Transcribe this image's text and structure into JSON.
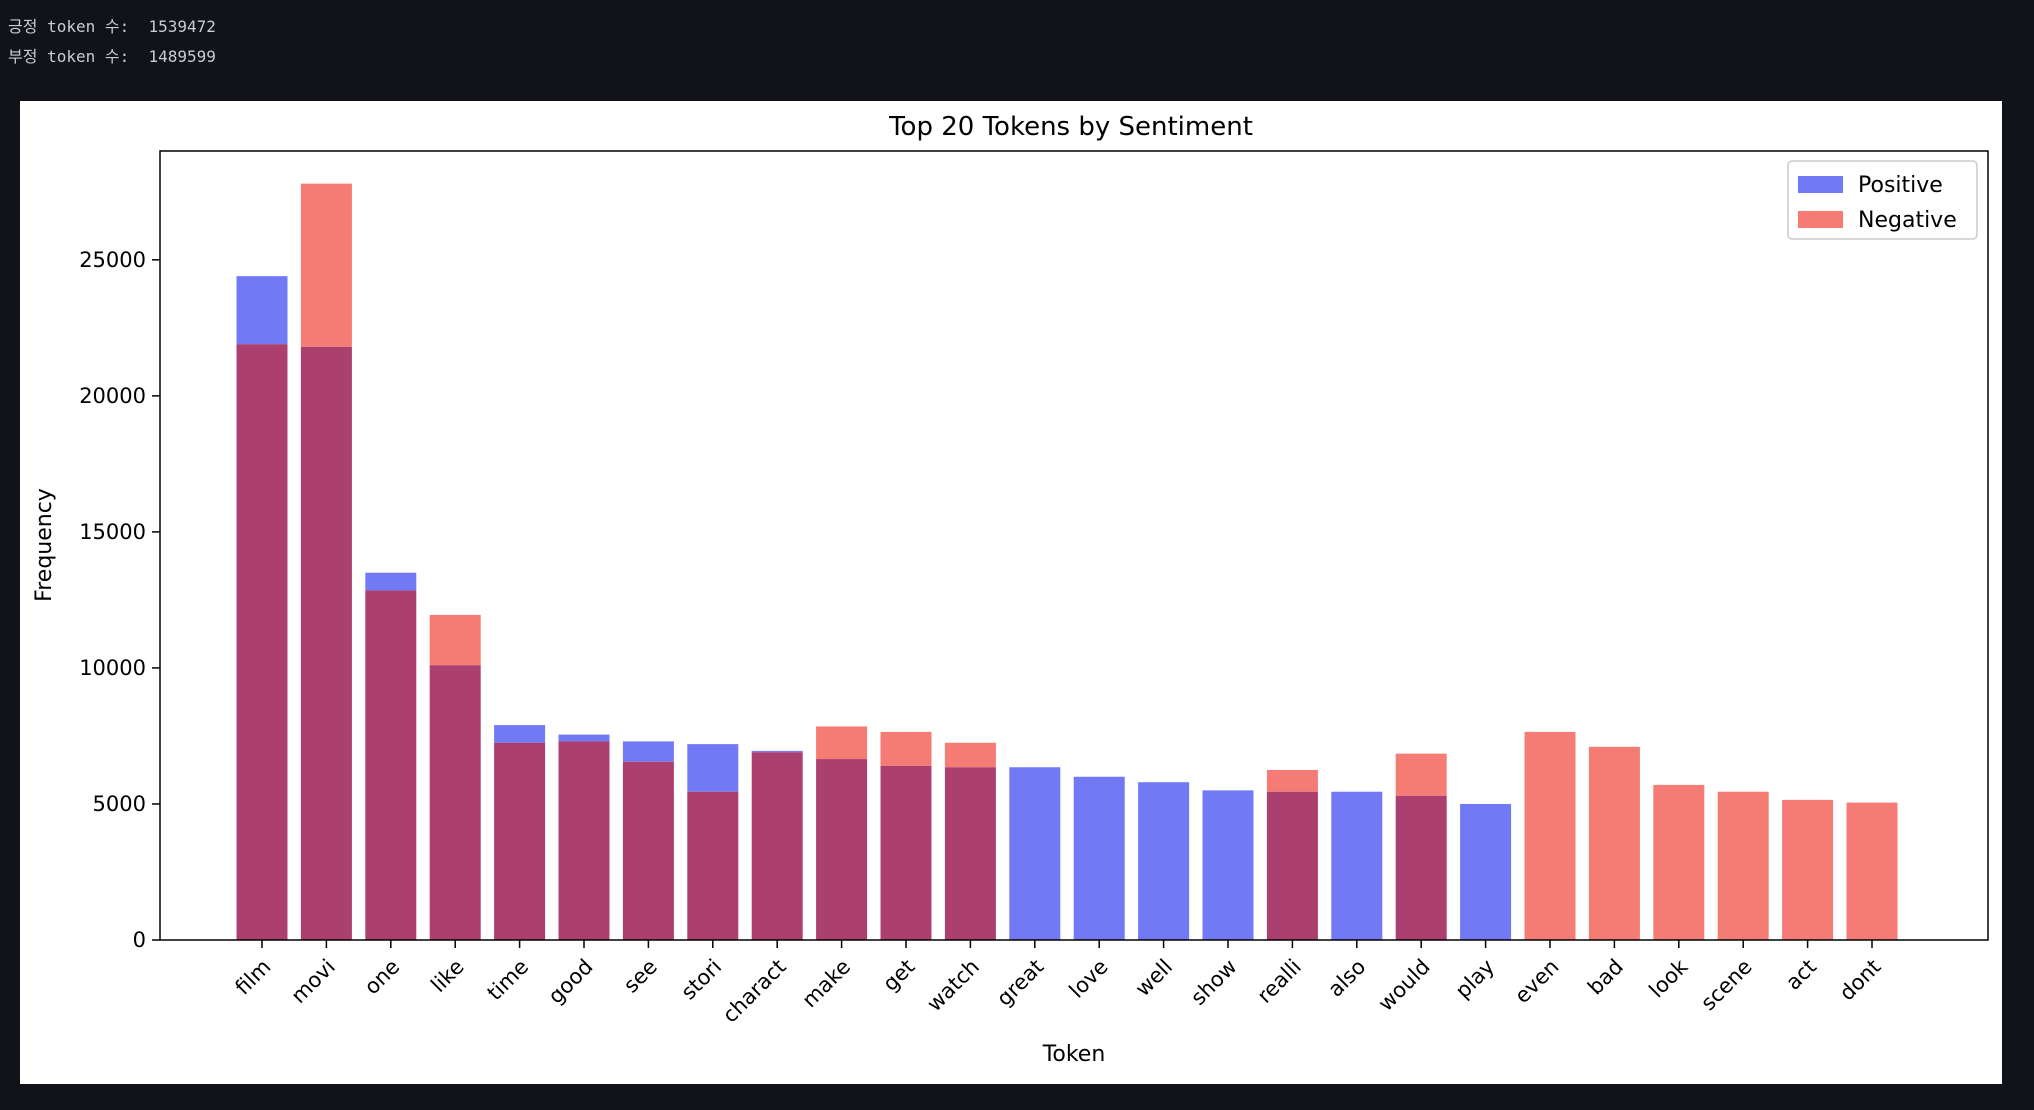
{
  "output": {
    "lines": [
      {
        "label": "긍정 token 수:",
        "value": "1539472"
      },
      {
        "label": "부정 token 수:",
        "value": "1489599"
      }
    ]
  },
  "chart_data": {
    "type": "bar",
    "title": "Top 20 Tokens by Sentiment",
    "xlabel": "Token",
    "ylabel": "Frequency",
    "ylim": [
      0,
      29000
    ],
    "yticks": [
      0,
      5000,
      10000,
      15000,
      20000,
      25000
    ],
    "categories": [
      "film",
      "movi",
      "one",
      "like",
      "time",
      "good",
      "see",
      "stori",
      "charact",
      "make",
      "get",
      "watch",
      "great",
      "love",
      "well",
      "show",
      "realli",
      "also",
      "would",
      "play",
      "even",
      "bad",
      "look",
      "scene",
      "act",
      "dont"
    ],
    "series": [
      {
        "name": "Positive",
        "color": "#7179f5",
        "values": [
          24400,
          21800,
          13500,
          10100,
          7900,
          7550,
          7300,
          7200,
          6950,
          6650,
          6400,
          6350,
          6350,
          6000,
          5800,
          5500,
          5450,
          5450,
          5300,
          5000,
          null,
          null,
          null,
          null,
          null,
          null
        ]
      },
      {
        "name": "Negative",
        "color": "#f47c75",
        "values": [
          21900,
          27800,
          12850,
          11950,
          7250,
          7300,
          6550,
          5450,
          6900,
          7850,
          7650,
          7250,
          null,
          null,
          null,
          null,
          6250,
          null,
          6850,
          null,
          7650,
          7100,
          5700,
          5450,
          5150,
          5050
        ]
      }
    ],
    "overlap_color": "#ab3f6f",
    "legend": "top-right",
    "grid": false
  }
}
